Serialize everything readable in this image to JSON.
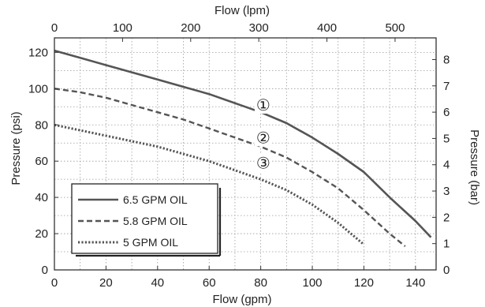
{
  "chart_data": {
    "type": "line",
    "xlabel": "Flow (gpm)",
    "ylabel": "Pressure (psi)",
    "x2label": "Flow (lpm)",
    "y2label": "Pressure (bar)",
    "xlim": [
      0,
      148
    ],
    "ylim": [
      0,
      128
    ],
    "x_ticks": [
      0,
      20,
      40,
      60,
      80,
      100,
      120,
      140
    ],
    "y_ticks": [
      0,
      20,
      40,
      60,
      80,
      100,
      120
    ],
    "x2_ticks": [
      0,
      100,
      200,
      300,
      400,
      500
    ],
    "y2_ticks": [
      0,
      1,
      2,
      3,
      4,
      5,
      6,
      7,
      8
    ],
    "grid": true,
    "legend_position": "bottom-left",
    "series": [
      {
        "name": "6.5 GPM OIL",
        "marker": "①",
        "marker_at": [
          81,
          91
        ],
        "color": "#555555",
        "style": "solid",
        "x": [
          0,
          10,
          20,
          30,
          40,
          50,
          60,
          70,
          80,
          90,
          100,
          110,
          120,
          130,
          140,
          146
        ],
        "y": [
          121,
          117,
          113,
          109,
          105,
          101,
          97,
          92,
          87,
          81,
          73,
          64,
          54,
          40,
          27,
          18
        ]
      },
      {
        "name": "5.8 GPM OIL",
        "marker": "②",
        "marker_at": [
          81,
          73
        ],
        "color": "#555555",
        "style": "dashed",
        "x": [
          0,
          10,
          20,
          30,
          40,
          50,
          60,
          70,
          80,
          90,
          100,
          110,
          120,
          130,
          136
        ],
        "y": [
          100,
          98,
          95,
          91,
          87,
          83,
          78,
          73,
          68,
          62,
          54,
          45,
          33,
          20,
          13
        ]
      },
      {
        "name": "5 GPM OIL",
        "marker": "③",
        "marker_at": [
          81,
          59
        ],
        "color": "#555555",
        "style": "dotted",
        "x": [
          0,
          10,
          20,
          30,
          40,
          50,
          60,
          70,
          80,
          90,
          100,
          110,
          120
        ],
        "y": [
          80,
          77,
          74,
          71,
          68,
          64,
          60,
          55,
          50,
          44,
          36,
          26,
          14
        ]
      }
    ]
  }
}
